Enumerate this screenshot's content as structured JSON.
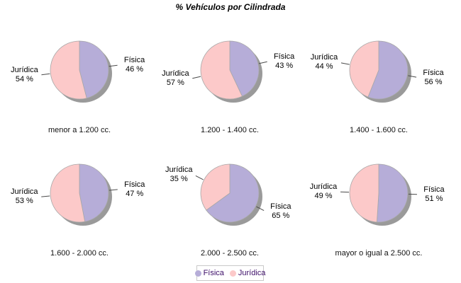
{
  "title": "% Vehículos por Cilindrada",
  "styles": {
    "fisica_color": "#b6add8",
    "juridica_color": "#fcc9c9",
    "shadow_color": "#9a9a9a",
    "slice_outline_color": "#a8a8a8",
    "callout_line_color": "#4a4a4a",
    "legend_text_color": "#3c0d68",
    "legend_border_color": "#c9c9c9"
  },
  "chart_data": {
    "type": "pie",
    "title": "% Vehículos por Cilindrada",
    "series": [
      "Física",
      "Jurídica"
    ],
    "colors": [
      "#b6add8",
      "#fcc9c9"
    ],
    "value_suffix": " %",
    "pies": [
      {
        "category": "menor a 1.200 cc.",
        "values": [
          46,
          54
        ]
      },
      {
        "category": "1.200 - 1.400 cc.",
        "values": [
          43,
          57
        ]
      },
      {
        "category": "1.400 - 1.600 cc.",
        "values": [
          56,
          44
        ]
      },
      {
        "category": "1.600 - 2.000 cc.",
        "values": [
          47,
          53
        ]
      },
      {
        "category": "2.000 - 2.500 cc.",
        "values": [
          65,
          35
        ]
      },
      {
        "category": "mayor o igual a 2.500 cc.",
        "values": [
          51,
          49
        ]
      }
    ],
    "layout_hints": {
      "grid": "2x3",
      "start_angle_deg": 0,
      "direction": "clockwise",
      "legend_position": "bottom",
      "labels": "callout lines with name and percent"
    }
  },
  "legend": {
    "items": [
      {
        "label": "Física"
      },
      {
        "label": "Jurídica"
      }
    ]
  }
}
